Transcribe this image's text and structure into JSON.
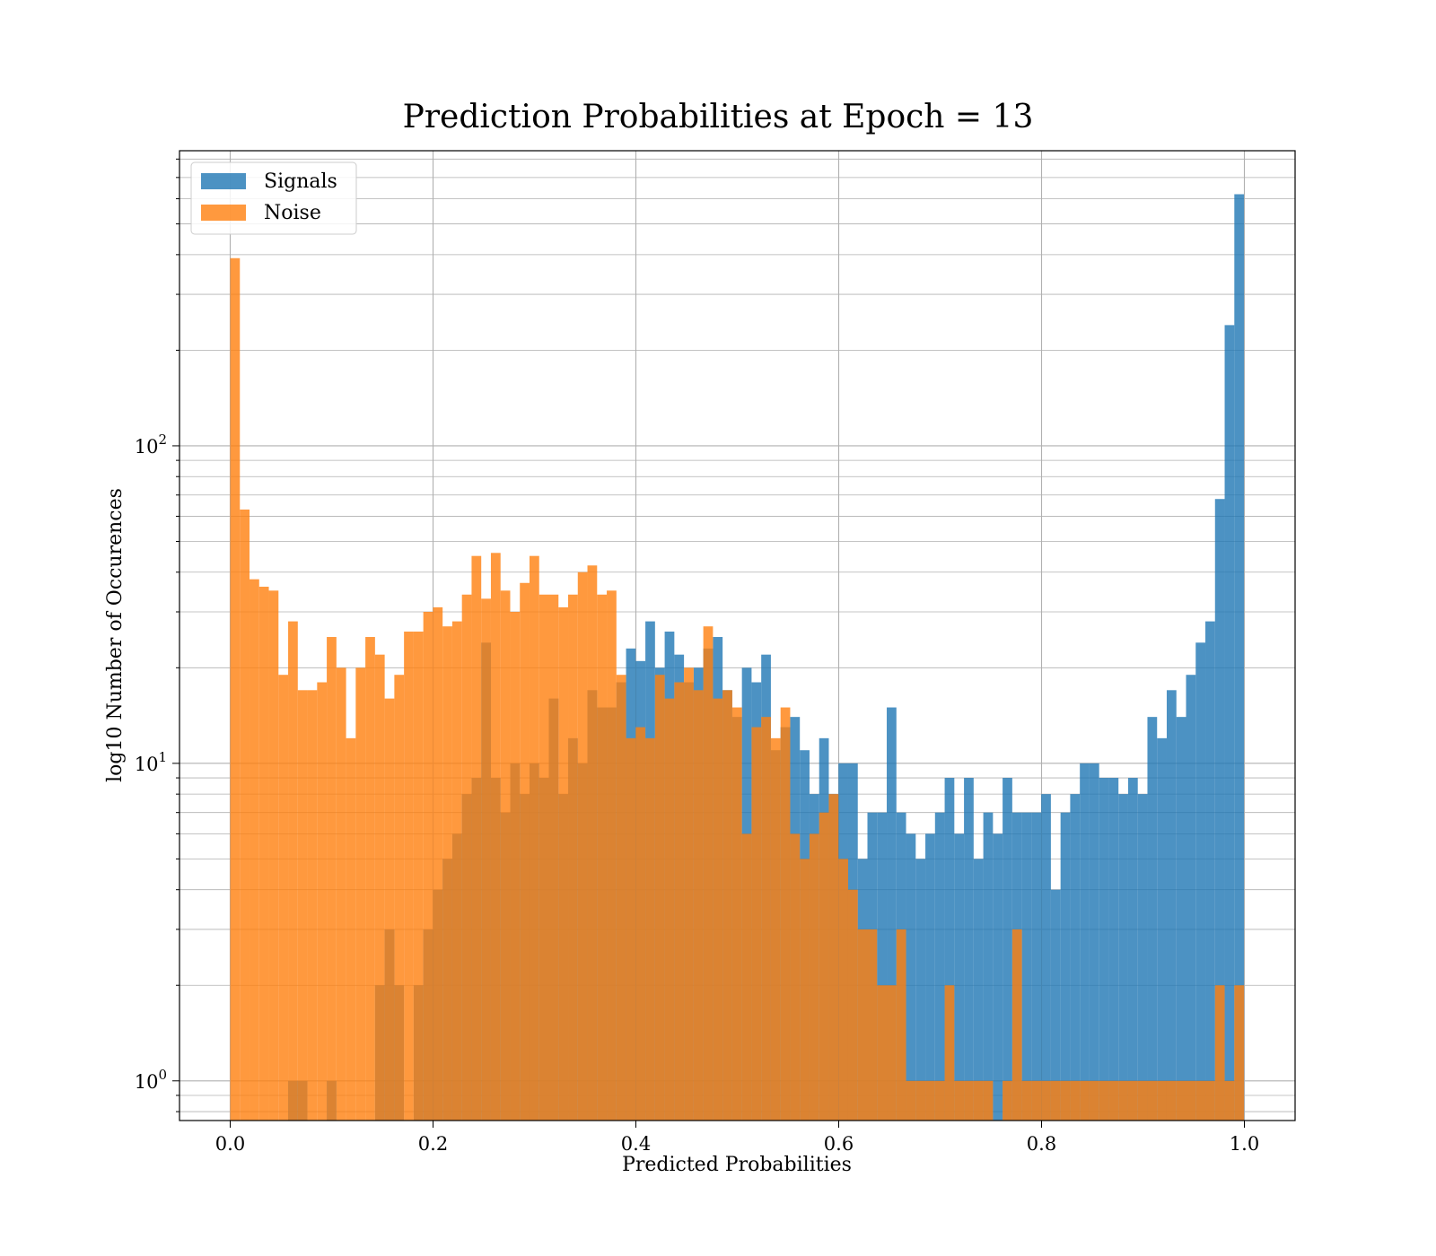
{
  "chart_data": {
    "type": "bar",
    "title": "Prediction Probabilities at Epoch = 13",
    "xlabel": "Predicted Probabilities",
    "ylabel": "log10 Number of Occurences",
    "xlim": [
      -0.05,
      1.05
    ],
    "ylim": [
      0.75,
      850
    ],
    "yscale": "log",
    "grid": true,
    "legend_position": "top-left",
    "xticks": [
      {
        "value": 0.0,
        "label": "0.0"
      },
      {
        "value": 0.2,
        "label": "0.2"
      },
      {
        "value": 0.4,
        "label": "0.4"
      },
      {
        "value": 0.6,
        "label": "0.6"
      },
      {
        "value": 0.8,
        "label": "0.8"
      },
      {
        "value": 1.0,
        "label": "1.0"
      }
    ],
    "yticks": [
      {
        "value": 1,
        "base": "10",
        "exp": "0"
      },
      {
        "value": 10,
        "base": "10",
        "exp": "1"
      },
      {
        "value": 100,
        "base": "10",
        "exp": "2"
      }
    ],
    "bin_start": 0.0,
    "bin_width": 0.00952,
    "series": [
      {
        "name": "Signals",
        "color": "#1f77b4",
        "values": [
          0,
          0,
          0,
          0,
          0,
          0,
          1,
          1,
          0,
          0,
          1,
          0,
          0,
          0,
          0,
          2,
          3,
          2,
          0,
          2,
          3,
          4,
          5,
          6,
          8,
          9,
          24,
          9,
          7,
          10,
          8,
          10,
          9,
          16,
          8,
          12,
          10,
          17,
          15,
          15,
          18,
          23,
          21,
          28,
          20,
          26,
          22,
          18,
          20,
          23,
          25,
          17,
          14,
          20,
          18,
          22,
          11,
          13,
          14,
          11,
          8,
          12,
          8,
          10,
          10,
          5,
          7,
          7,
          15,
          7,
          6,
          5,
          6,
          7,
          9,
          6,
          9,
          5,
          7,
          6,
          9,
          7,
          7,
          7,
          8,
          4,
          7,
          8,
          10,
          10,
          9,
          9,
          8,
          9,
          8,
          14,
          12,
          17,
          14,
          19,
          24,
          28,
          68,
          240,
          620
        ]
      },
      {
        "name": "Noise",
        "color": "#ff7f0e",
        "values": [
          390,
          63,
          38,
          36,
          35,
          19,
          28,
          17,
          17,
          18,
          25,
          20,
          12,
          20,
          25,
          22,
          16,
          19,
          26,
          26,
          30,
          31,
          27,
          28,
          34,
          45,
          33,
          46,
          35,
          30,
          37,
          45,
          34,
          34,
          31,
          34,
          40,
          42,
          34,
          35,
          19,
          12,
          13,
          12,
          19,
          16,
          18,
          20,
          17,
          27,
          16,
          17,
          15,
          6,
          13,
          14,
          12,
          15,
          6,
          5,
          6,
          7,
          8,
          5,
          4,
          3,
          3,
          2,
          2,
          3,
          1,
          1,
          1,
          1,
          2,
          1,
          1,
          1,
          1,
          0,
          1,
          3,
          1,
          1,
          1,
          1,
          1,
          1,
          1,
          1,
          1,
          1,
          1,
          1,
          1,
          1,
          1,
          1,
          1,
          1,
          1,
          1,
          2,
          1,
          2
        ]
      }
    ]
  }
}
